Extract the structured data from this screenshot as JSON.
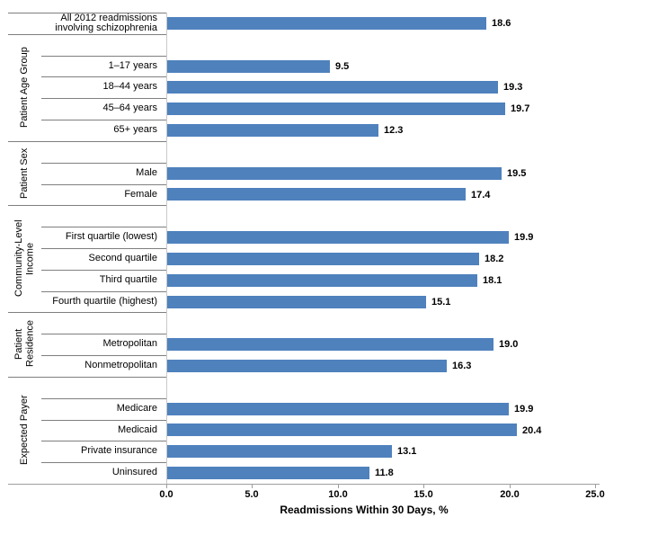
{
  "chart_data": {
    "type": "bar",
    "orientation": "horizontal",
    "xlabel": "Readmissions Within 30 Days, %",
    "xlim": [
      0,
      25
    ],
    "xticks": [
      "0.0",
      "5.0",
      "10.0",
      "15.0",
      "20.0",
      "25.0"
    ],
    "value_decimals": 1,
    "bar_color": "#4F81BD",
    "separator_color": "#7F7F7F",
    "axis_line_color": "#9E9E9E",
    "category_axis_line_color": "#C9C9C9",
    "text_color": "#000000",
    "grid": false,
    "legend": null,
    "groups": [
      {
        "label": "",
        "items": [
          {
            "label": "All 2012 readmissions involving schizophrenia",
            "value": 18.6
          }
        ]
      },
      {
        "label": "Patient Age Group",
        "items": [
          {
            "label": "1–17 years",
            "value": 9.5
          },
          {
            "label": "18–44 years",
            "value": 19.3
          },
          {
            "label": "45–64 years",
            "value": 19.7
          },
          {
            "label": "65+ years",
            "value": 12.3
          }
        ]
      },
      {
        "label": "Patient Sex",
        "items": [
          {
            "label": "Male",
            "value": 19.5
          },
          {
            "label": "Female",
            "value": 17.4
          }
        ]
      },
      {
        "label": "Community-Level Income",
        "items": [
          {
            "label": "First quartile (lowest)",
            "value": 19.9
          },
          {
            "label": "Second quartile",
            "value": 18.2
          },
          {
            "label": "Third quartile",
            "value": 18.1
          },
          {
            "label": "Fourth quartile (highest)",
            "value": 15.1
          }
        ]
      },
      {
        "label": "Patient Residence",
        "items": [
          {
            "label": "Metropolitan",
            "value": 19.0
          },
          {
            "label": "Nonmetropolitan",
            "value": 16.3
          }
        ]
      },
      {
        "label": "Expected Payer",
        "items": [
          {
            "label": "Medicare",
            "value": 19.9
          },
          {
            "label": "Medicaid",
            "value": 20.4
          },
          {
            "label": "Private insurance",
            "value": 13.1
          },
          {
            "label": "Uninsured",
            "value": 11.8
          }
        ]
      }
    ]
  }
}
